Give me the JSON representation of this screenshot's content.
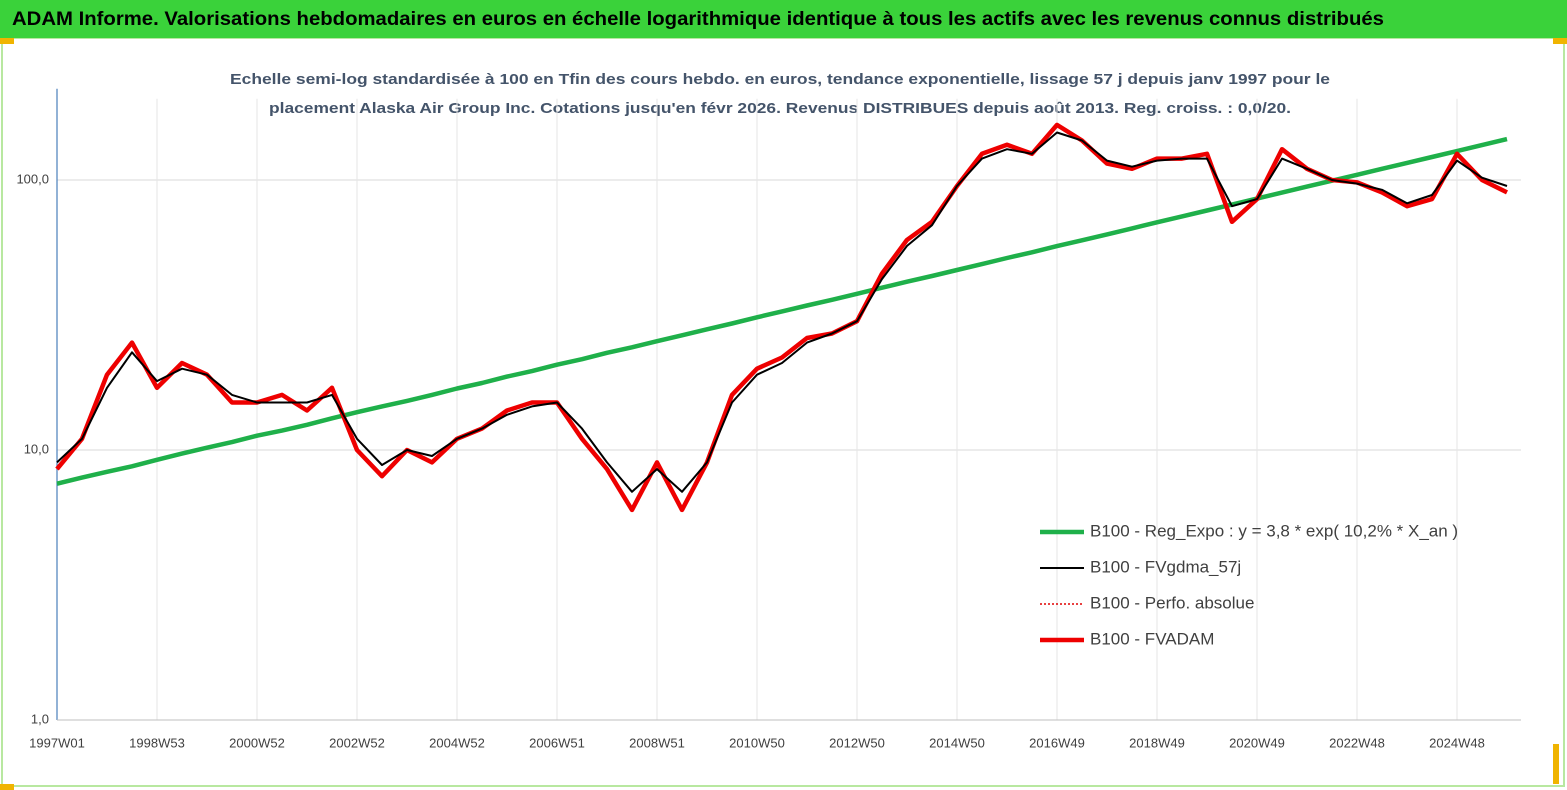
{
  "chart_data": {
    "type": "line",
    "title": "ADAM Informe. Valorisations hebdomadaires en euros en échelle logarithmique identique à tous les actifs avec les revenus connus distribués",
    "subtitle": [
      "Echelle semi-log standardisée à 100 en Tfin des cours hebdo. en euros, tendance exponentielle, lissage 57 j depuis janv 1997 pour le",
      "placement Alaska Air Group Inc. Cotations jusqu'en févr 2026.  Revenus DISTRIBUES depuis août 2013. Reg. croiss. : 0,0/20."
    ],
    "categories": [
      "1997W01",
      null,
      null,
      null,
      "1998W53",
      null,
      null,
      null,
      "2000W52",
      null,
      null,
      null,
      "2002W52",
      null,
      null,
      null,
      "2004W52",
      null,
      null,
      null,
      "2006W51",
      null,
      null,
      null,
      "2008W51",
      null,
      null,
      null,
      "2010W50",
      null,
      null,
      null,
      "2012W50",
      null,
      null,
      null,
      "2014W50",
      null,
      null,
      null,
      "2016W49",
      null,
      null,
      null,
      "2018W49",
      null,
      null,
      null,
      "2020W49",
      null,
      null,
      null,
      "2022W48",
      null,
      null,
      null,
      "2024W48",
      null,
      null
    ],
    "log_scale": true,
    "grid": true,
    "legend": "center right",
    "ylim": [
      1,
      200
    ],
    "yticks": [
      {
        "value": 1,
        "label": "1,0"
      },
      {
        "value": 10,
        "label": "10,0"
      },
      {
        "value": 100,
        "label": "100,0"
      }
    ],
    "series": [
      {
        "name": "B100 - Reg_Expo : y = 3,8 * exp( 10,2% *  X_an )",
        "color": "#1fb04a",
        "style": "thick",
        "values": [
          7.5,
          7.9,
          8.3,
          8.7,
          9.2,
          9.7,
          10.2,
          10.7,
          11.3,
          11.8,
          12.4,
          13.1,
          13.8,
          14.5,
          15.2,
          16.0,
          16.9,
          17.7,
          18.7,
          19.6,
          20.7,
          21.7,
          22.9,
          24.0,
          25.3,
          26.6,
          28.0,
          29.4,
          31.0,
          32.6,
          34.3,
          36.0,
          37.9,
          39.9,
          42.0,
          44.1,
          46.4,
          48.8,
          51.4,
          54.0,
          56.9,
          59.8,
          62.9,
          66.2,
          69.7,
          73.3,
          77.1,
          81.1,
          85.3,
          89.8,
          94.5,
          99.4,
          104.5,
          110,
          115.7,
          121.7,
          128,
          134.7,
          141.7
        ]
      },
      {
        "name": "B100 - FVgdma_57j",
        "color": "#000000",
        "style": "thin",
        "values": [
          9,
          11,
          17,
          23,
          18,
          20,
          19,
          16,
          15,
          15,
          15,
          16,
          11,
          8.8,
          10,
          9.5,
          11,
          12,
          13.5,
          14.5,
          15,
          12,
          9,
          7,
          8.5,
          7,
          9,
          15,
          19,
          21,
          25,
          27,
          30,
          43,
          57,
          68,
          95,
          120,
          130,
          125,
          150,
          140,
          118,
          112,
          118,
          120,
          120,
          80,
          85,
          120,
          110,
          100,
          97,
          92,
          82,
          88,
          118,
          102,
          95
        ]
      },
      {
        "name": "B100 - Perfo. absolue",
        "color": "#e00000",
        "style": "dotted",
        "values": [
          8.5,
          11,
          19,
          25,
          17,
          21,
          19,
          15,
          15,
          16,
          14,
          17,
          10,
          8,
          10,
          9,
          11,
          12,
          14,
          15,
          15,
          11,
          8.5,
          6,
          9,
          6,
          9,
          16,
          20,
          22,
          26,
          27,
          30,
          45,
          60,
          70,
          95,
          125,
          135,
          125,
          160,
          140,
          115,
          110,
          120,
          120,
          125,
          70,
          85,
          130,
          110,
          100,
          98,
          90,
          80,
          85,
          125,
          100,
          90
        ]
      },
      {
        "name": "B100 - FVADAM",
        "color": "#ee0000",
        "style": "thick",
        "values": [
          8.5,
          11,
          19,
          25,
          17,
          21,
          19,
          15,
          15,
          16,
          14,
          17,
          10,
          8,
          10,
          9,
          11,
          12,
          14,
          15,
          15,
          11,
          8.5,
          6,
          9,
          6,
          9,
          16,
          20,
          22,
          26,
          27,
          30,
          45,
          60,
          70,
          95,
          125,
          135,
          125,
          160,
          140,
          115,
          110,
          120,
          120,
          125,
          70,
          85,
          130,
          110,
          100,
          98,
          90,
          80,
          85,
          125,
          100,
          90
        ]
      }
    ]
  }
}
